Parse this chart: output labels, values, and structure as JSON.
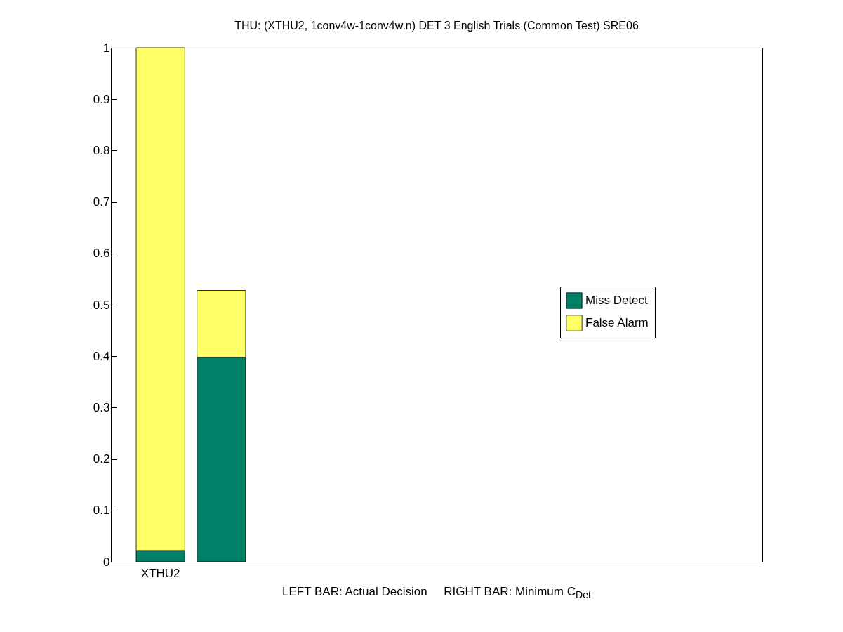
{
  "chart_data": {
    "type": "bar",
    "title": "THU: (XTHU2, 1conv4w-1conv4w.n) DET 3 English Trials (Common Test) SRE06",
    "xlabel": "LEFT BAR: Actual Decision     RIGHT BAR: Minimum C$_{Det}$",
    "categories": [
      "XTHU2",
      null
    ],
    "stacked": true,
    "series": [
      {
        "name": "Miss Detect",
        "color": "#008066",
        "values": [
          0.022,
          0.398
        ]
      },
      {
        "name": "False Alarm",
        "color": "#ffff66",
        "values": [
          0.978,
          0.13
        ]
      }
    ],
    "ylim": [
      0,
      1
    ],
    "yticks": [
      0,
      0.1,
      0.2,
      0.3,
      0.4,
      0.5,
      0.6,
      0.7,
      0.8,
      0.9,
      1
    ],
    "grid": false,
    "legend": "right"
  }
}
